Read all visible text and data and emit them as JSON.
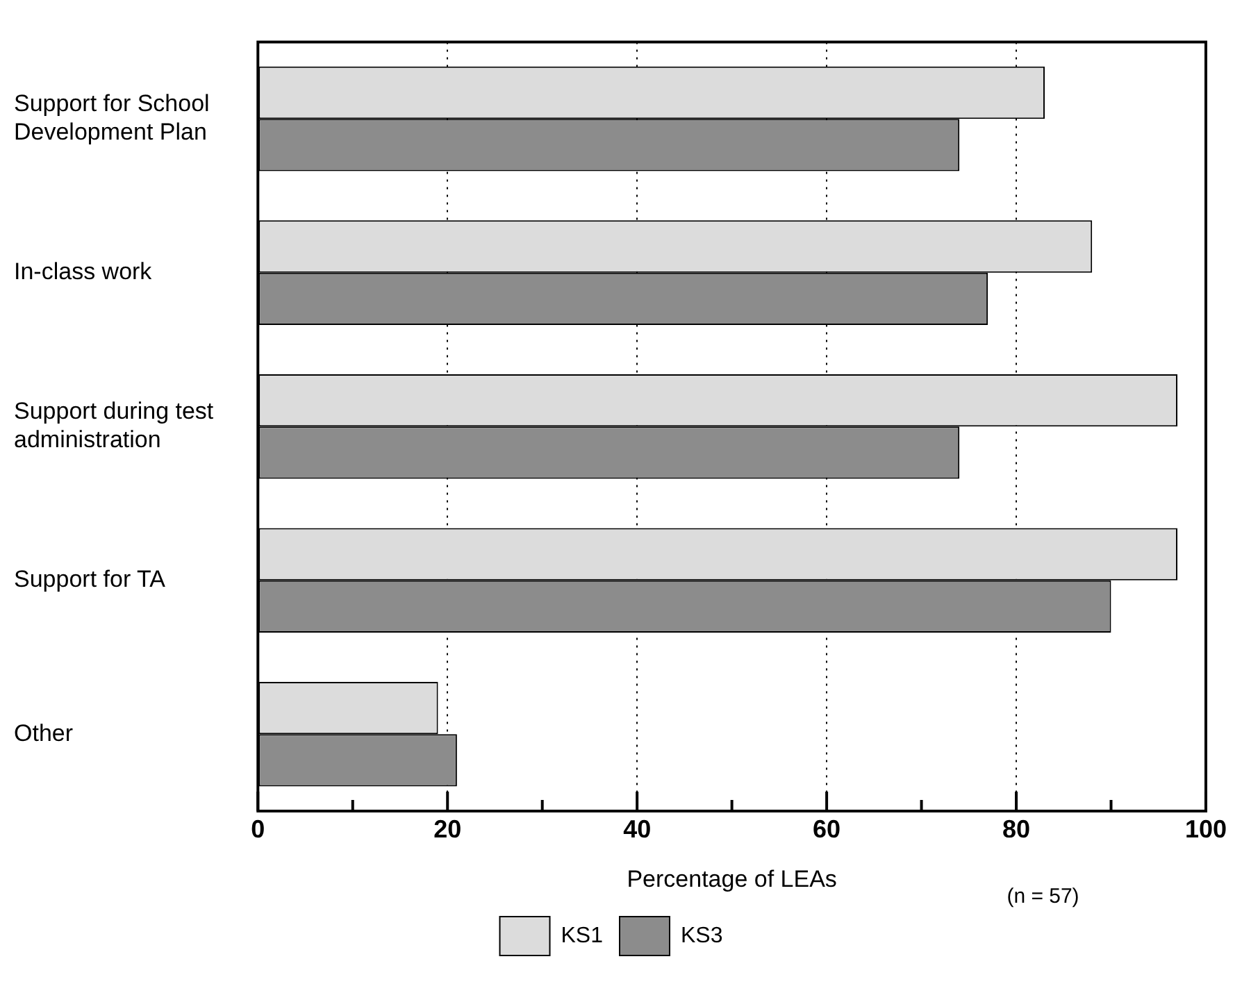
{
  "chart_data": {
    "type": "bar",
    "orientation": "horizontal",
    "categories": [
      "Support for School Development Plan",
      "In-class work",
      "Support during test administration",
      "Support for TA",
      "Other"
    ],
    "series": [
      {
        "name": "KS1",
        "color": "#dcdcdc",
        "values": [
          83,
          88,
          97,
          97,
          19
        ]
      },
      {
        "name": "KS3",
        "color": "#8c8c8c",
        "values": [
          74,
          77,
          74,
          90,
          21
        ]
      }
    ],
    "xlabel": "Percentage of LEAs",
    "annotations": [
      "(n = 57)"
    ],
    "xlim": [
      0,
      100
    ],
    "xticks": [
      0,
      {
        "value": 10,
        "label": null
      },
      20,
      {
        "value": 30,
        "label": null
      },
      40,
      {
        "value": 50,
        "label": null
      },
      60,
      {
        "value": 70,
        "label": null
      },
      80,
      {
        "value": 90,
        "label": null
      },
      100
    ],
    "grid": "x",
    "line_style": "dotted",
    "legend": "bottom"
  }
}
